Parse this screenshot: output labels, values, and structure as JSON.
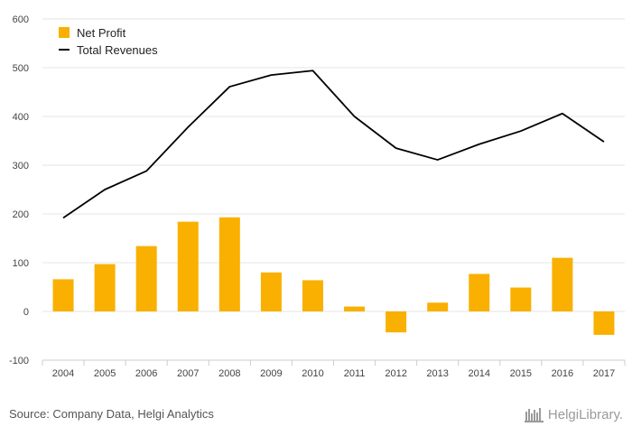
{
  "source_text": "Source: Company Data, Helgi Analytics",
  "brand_text": "HelgiLibrary.",
  "colors": {
    "bar": "#F9B000",
    "line": "#000000",
    "grid": "#e6e6e6",
    "axis": "#cccccc"
  },
  "chart_data": {
    "type": "bar",
    "categories": [
      "2004",
      "2005",
      "2006",
      "2007",
      "2008",
      "2009",
      "2010",
      "2011",
      "2012",
      "2013",
      "2014",
      "2015",
      "2016",
      "2017"
    ],
    "series": [
      {
        "name": "Net Profit",
        "type": "bar",
        "values": [
          66,
          97,
          134,
          184,
          193,
          80,
          64,
          10,
          -43,
          18,
          77,
          49,
          110,
          -48
        ]
      },
      {
        "name": "Total Revenues",
        "type": "line",
        "values": [
          192,
          250,
          288,
          378,
          461,
          485,
          494,
          400,
          335,
          311,
          343,
          370,
          406,
          348
        ]
      }
    ],
    "ylim": [
      -100,
      600
    ],
    "yticks": [
      -100,
      0,
      100,
      200,
      300,
      400,
      500,
      600
    ],
    "grid": true,
    "legend_position": "top-left",
    "xlabel": "",
    "ylabel": ""
  }
}
